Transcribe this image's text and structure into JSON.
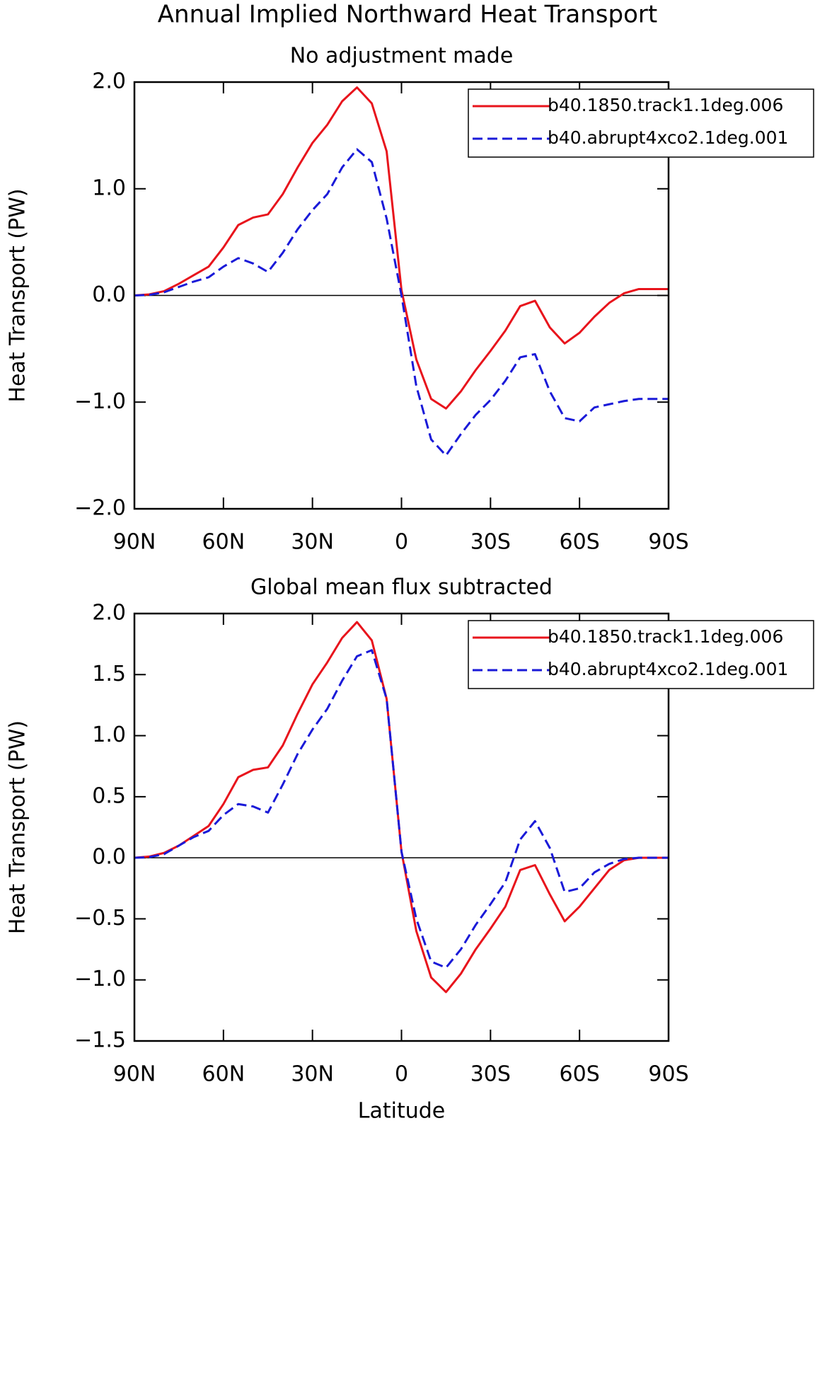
{
  "title": "Annual Implied Northward Heat Transport",
  "chart_data": [
    {
      "type": "line",
      "subtitle": "No adjustment made",
      "y_label": "Heat Transport (PW)",
      "x": [
        90,
        85,
        80,
        75,
        70,
        65,
        60,
        55,
        50,
        45,
        40,
        35,
        30,
        25,
        20,
        15,
        10,
        5,
        0,
        -5,
        -10,
        -15,
        -20,
        -25,
        -30,
        -35,
        -40,
        -45,
        -50,
        -55,
        -60,
        -65,
        -70,
        -75,
        -80,
        -85,
        -90
      ],
      "xlim": [
        90,
        -90
      ],
      "xticks": [
        {
          "value": 90,
          "label": "90N"
        },
        {
          "value": 60,
          "label": "60N"
        },
        {
          "value": 30,
          "label": "30N"
        },
        0,
        {
          "value": -30,
          "label": "30S"
        },
        {
          "value": -60,
          "label": "60S"
        },
        {
          "value": -90,
          "label": "90S"
        }
      ],
      "ylim": [
        -2,
        2
      ],
      "yticks": [
        {
          "value": -2,
          "label": "−2.0"
        },
        {
          "value": -1,
          "label": "−1.0"
        },
        {
          "value": 0,
          "label": "0.0"
        },
        {
          "value": 1,
          "label": "1.0"
        },
        {
          "value": 2,
          "label": "2.0"
        }
      ],
      "legend": "upper right",
      "series": [
        {
          "name": "b40.1850.track1.1deg.006",
          "color": "#e8141c",
          "dash": "solid",
          "values": [
            0,
            0.01,
            0.04,
            0.11,
            0.19,
            0.27,
            0.45,
            0.66,
            0.73,
            0.76,
            0.95,
            1.2,
            1.43,
            1.6,
            1.82,
            1.95,
            1.8,
            1.35,
            0.05,
            -0.6,
            -0.97,
            -1.06,
            -0.9,
            -0.7,
            -0.52,
            -0.33,
            -0.1,
            -0.05,
            -0.3,
            -0.45,
            -0.35,
            -0.2,
            -0.07,
            0.02,
            0.06,
            0.06,
            0.06
          ]
        },
        {
          "name": "b40.abrupt4xco2.1deg.001",
          "color": "#1a1ad8",
          "dash": "dashed",
          "values": [
            0,
            0.005,
            0.03,
            0.08,
            0.13,
            0.17,
            0.27,
            0.35,
            0.3,
            0.22,
            0.4,
            0.62,
            0.8,
            0.95,
            1.2,
            1.37,
            1.25,
            0.72,
            0.0,
            -0.85,
            -1.35,
            -1.5,
            -1.3,
            -1.12,
            -0.98,
            -0.8,
            -0.58,
            -0.55,
            -0.9,
            -1.15,
            -1.18,
            -1.05,
            -1.02,
            -0.99,
            -0.97,
            -0.97,
            -0.97
          ]
        }
      ]
    },
    {
      "type": "line",
      "subtitle": "Global mean flux subtracted",
      "y_label": "Heat Transport (PW)",
      "x_label": "Latitude",
      "x": [
        90,
        85,
        80,
        75,
        70,
        65,
        60,
        55,
        50,
        45,
        40,
        35,
        30,
        25,
        20,
        15,
        10,
        5,
        0,
        -5,
        -10,
        -15,
        -20,
        -25,
        -30,
        -35,
        -40,
        -45,
        -50,
        -55,
        -60,
        -65,
        -70,
        -75,
        -80,
        -85,
        -90
      ],
      "xlim": [
        90,
        -90
      ],
      "xticks": [
        {
          "value": 90,
          "label": "90N"
        },
        {
          "value": 60,
          "label": "60N"
        },
        {
          "value": 30,
          "label": "30N"
        },
        0,
        {
          "value": -30,
          "label": "30S"
        },
        {
          "value": -60,
          "label": "60S"
        },
        {
          "value": -90,
          "label": "90S"
        }
      ],
      "ylim": [
        -1.5,
        2
      ],
      "yticks": [
        {
          "value": -1.5,
          "label": "−1.5"
        },
        {
          "value": -1,
          "label": "−1.0"
        },
        {
          "value": -0.5,
          "label": "−0.5"
        },
        {
          "value": 0,
          "label": "0.0"
        },
        {
          "value": 0.5,
          "label": "0.5"
        },
        {
          "value": 1,
          "label": "1.0"
        },
        {
          "value": 1.5,
          "label": "1.5"
        },
        {
          "value": 2,
          "label": "2.0"
        }
      ],
      "legend": "upper right",
      "series": [
        {
          "name": "b40.1850.track1.1deg.006",
          "color": "#e8141c",
          "dash": "solid",
          "values": [
            0,
            0.01,
            0.04,
            0.1,
            0.18,
            0.26,
            0.44,
            0.66,
            0.72,
            0.74,
            0.92,
            1.18,
            1.42,
            1.6,
            1.8,
            1.93,
            1.78,
            1.3,
            0.05,
            -0.6,
            -0.98,
            -1.1,
            -0.95,
            -0.75,
            -0.58,
            -0.4,
            -0.1,
            -0.06,
            -0.3,
            -0.52,
            -0.4,
            -0.25,
            -0.1,
            -0.02,
            0,
            0,
            0
          ]
        },
        {
          "name": "b40.abrupt4xco2.1deg.001",
          "color": "#1a1ad8",
          "dash": "dashed",
          "values": [
            0,
            0.005,
            0.03,
            0.1,
            0.17,
            0.22,
            0.35,
            0.44,
            0.42,
            0.37,
            0.6,
            0.85,
            1.05,
            1.22,
            1.45,
            1.65,
            1.7,
            1.3,
            0.05,
            -0.5,
            -0.85,
            -0.9,
            -0.75,
            -0.55,
            -0.38,
            -0.2,
            0.15,
            0.3,
            0.08,
            -0.28,
            -0.25,
            -0.12,
            -0.05,
            -0.01,
            0,
            0,
            0
          ]
        }
      ]
    }
  ]
}
